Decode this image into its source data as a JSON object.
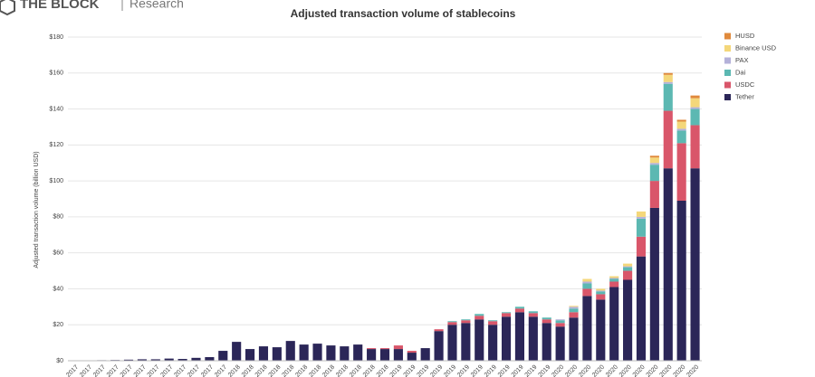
{
  "header": {
    "brand": "THE BLOCK",
    "section": "Research"
  },
  "chart_data": {
    "type": "stacked_bar",
    "title": "Adjusted transaction volume of stablecoins",
    "y_label": "Adjusted transaction volume (billion USD)",
    "categories": [
      "2017",
      "2017",
      "2017",
      "2017",
      "2017",
      "2017",
      "2017",
      "2017",
      "2017",
      "2017",
      "2017",
      "2017",
      "2018",
      "2018",
      "2018",
      "2018",
      "2018",
      "2018",
      "2018",
      "2018",
      "2018",
      "2018",
      "2018",
      "2018",
      "2019",
      "2019",
      "2019",
      "2019",
      "2019",
      "2019",
      "2019",
      "2019",
      "2019",
      "2019",
      "2019",
      "2019",
      "2020",
      "2020",
      "2020",
      "2020",
      "2020",
      "2020",
      "2020",
      "2020",
      "2020",
      "2020",
      "2020"
    ],
    "series": [
      {
        "name": "Tether",
        "color": "#2b2658",
        "values": [
          0.2,
          0.2,
          0.3,
          0.4,
          0.6,
          0.8,
          0.8,
          1.2,
          1.0,
          1.6,
          2.0,
          5.5,
          10.5,
          6.5,
          8,
          7.5,
          11,
          9,
          9.5,
          8.5,
          8,
          9,
          6.5,
          6.5,
          6.5,
          4.5,
          7,
          16.5,
          20,
          21,
          23,
          20,
          24.5,
          27,
          24.5,
          21,
          19,
          24,
          36,
          34,
          41,
          45,
          58,
          85,
          107,
          89,
          107
        ]
      },
      {
        "name": "USDC",
        "color": "#d9566a",
        "values": [
          0,
          0,
          0,
          0,
          0,
          0,
          0,
          0,
          0,
          0,
          0,
          0,
          0,
          0,
          0,
          0,
          0,
          0,
          0,
          0,
          0,
          0,
          0.5,
          0.5,
          2,
          1,
          0,
          1,
          1.5,
          1.5,
          2,
          2,
          2,
          2,
          2,
          2,
          2,
          3,
          4,
          3,
          3,
          5,
          11,
          15,
          32,
          32,
          24
        ]
      },
      {
        "name": "Dai",
        "color": "#5cb8b2",
        "values": [
          0,
          0,
          0,
          0,
          0,
          0,
          0,
          0,
          0,
          0,
          0,
          0,
          0,
          0,
          0,
          0,
          0,
          0,
          0,
          0,
          0,
          0,
          0,
          0,
          0,
          0,
          0,
          0,
          0.5,
          0.5,
          1,
          0.5,
          0.5,
          1,
          1,
          1,
          1.5,
          2,
          3,
          1.5,
          1.5,
          2,
          10,
          9,
          15,
          7,
          9
        ]
      },
      {
        "name": "PAX",
        "color": "#b4b1d9",
        "values": [
          0,
          0,
          0,
          0,
          0,
          0,
          0,
          0,
          0,
          0,
          0,
          0,
          0,
          0,
          0,
          0,
          0,
          0,
          0,
          0,
          0,
          0,
          0,
          0,
          0,
          0,
          0,
          0,
          0,
          0,
          0,
          0,
          0,
          0,
          0,
          0,
          0.5,
          1,
          1,
          0.5,
          0.5,
          0.5,
          1,
          1,
          1,
          1,
          1
        ]
      },
      {
        "name": "Binance USD",
        "color": "#f4d77a",
        "values": [
          0,
          0,
          0,
          0,
          0,
          0,
          0,
          0,
          0,
          0,
          0,
          0,
          0,
          0,
          0,
          0,
          0,
          0,
          0,
          0,
          0,
          0,
          0,
          0,
          0,
          0,
          0,
          0,
          0,
          0,
          0,
          0,
          0,
          0,
          0,
          0,
          0,
          0.5,
          1.5,
          1,
          1,
          1.5,
          3,
          3,
          4,
          4,
          5
        ]
      },
      {
        "name": "HUSD",
        "color": "#e08a3c",
        "values": [
          0,
          0,
          0,
          0,
          0,
          0,
          0,
          0,
          0,
          0,
          0,
          0,
          0,
          0,
          0,
          0,
          0,
          0,
          0,
          0,
          0,
          0,
          0,
          0,
          0,
          0,
          0,
          0,
          0,
          0,
          0,
          0,
          0,
          0,
          0,
          0,
          0,
          0,
          0,
          0,
          0,
          0,
          0,
          1,
          1,
          1,
          1.5
        ]
      }
    ],
    "ylim": [
      0,
      180
    ],
    "yticks": [
      {
        "value": 0,
        "label": "$0"
      },
      {
        "value": 20,
        "label": "$20"
      },
      {
        "value": 40,
        "label": "$40"
      },
      {
        "value": 60,
        "label": "$60"
      },
      {
        "value": 80,
        "label": "$80"
      },
      {
        "value": 100,
        "label": "$100"
      },
      {
        "value": 120,
        "label": "$120"
      },
      {
        "value": 140,
        "label": "$140"
      },
      {
        "value": 160,
        "label": "$160"
      },
      {
        "value": 180,
        "label": "$180"
      }
    ],
    "grid": true,
    "legend": "top-right"
  }
}
